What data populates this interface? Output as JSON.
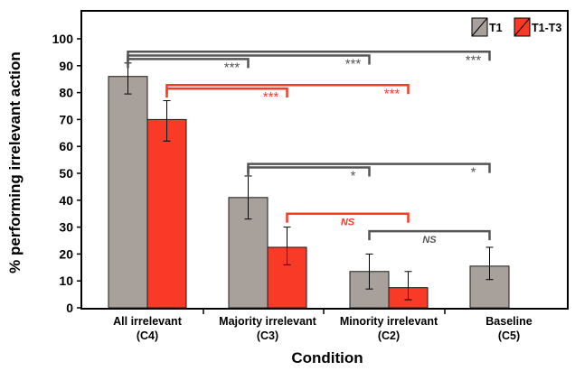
{
  "chart_data": {
    "type": "bar",
    "ylabel": "% performing irrelevant action",
    "xlabel": "Condition",
    "ylim": [
      0,
      100
    ],
    "yticks": [
      0,
      10,
      20,
      30,
      40,
      50,
      60,
      70,
      80,
      90,
      100
    ],
    "categories": [
      {
        "name": "All irrelevant",
        "code": "(C4)"
      },
      {
        "name": "Majority irrelevant",
        "code": "(C3)"
      },
      {
        "name": "Minority irrelevant",
        "code": "(C2)"
      },
      {
        "name": "Baseline",
        "code": "(C5)"
      }
    ],
    "series": [
      {
        "name": "T1",
        "color": "#a8a09a",
        "values": [
          86,
          41,
          13.5,
          15.5
        ],
        "err_low": [
          79.5,
          33,
          7,
          10.5
        ],
        "err_high": [
          91,
          49,
          20,
          22.5
        ]
      },
      {
        "name": "T1-T3",
        "color": "#f83a26",
        "values": [
          70,
          22.5,
          7.5,
          null
        ],
        "err_low": [
          62,
          16,
          3,
          null
        ],
        "err_high": [
          77,
          30,
          13.5,
          null
        ]
      }
    ],
    "legend": {
      "position": "top-right"
    },
    "significance": [
      {
        "text": "***",
        "color": "#555555",
        "from_series": "T1",
        "from_category": 0,
        "to_series": "T1",
        "to_category": 1,
        "level": 92.5
      },
      {
        "text": "***",
        "color": "#555555",
        "from_series": "T1",
        "from_category": 0,
        "to_series": "T1",
        "to_category": 2,
        "level": 93.8
      },
      {
        "text": "***",
        "color": "#555555",
        "from_series": "T1",
        "from_category": 0,
        "to_series": "T1",
        "to_category": 3,
        "level": 95.2
      },
      {
        "text": "***",
        "color": "#f83a26",
        "from_series": "T1-T3",
        "from_category": 0,
        "to_series": "T1-T3",
        "to_category": 1,
        "level": 81.5
      },
      {
        "text": "***",
        "color": "#f83a26",
        "from_series": "T1-T3",
        "from_category": 0,
        "to_series": "T1-T3",
        "to_category": 2,
        "level": 82.8
      },
      {
        "text": "*",
        "color": "#555555",
        "from_series": "T1",
        "from_category": 1,
        "to_series": "T1",
        "to_category": 2,
        "level": 52.2
      },
      {
        "text": "*",
        "color": "#555555",
        "from_series": "T1",
        "from_category": 1,
        "to_series": "T1",
        "to_category": 3,
        "level": 53.5
      },
      {
        "text": "NS",
        "color": "#f83a26",
        "from_series": "T1-T3",
        "from_category": 1,
        "to_series": "T1-T3",
        "to_category": 2,
        "level": 35
      },
      {
        "text": "NS",
        "color": "#555555",
        "from_series": "T1",
        "from_category": 2,
        "to_series": "T1",
        "to_category": 3,
        "level": 28.5
      }
    ]
  }
}
